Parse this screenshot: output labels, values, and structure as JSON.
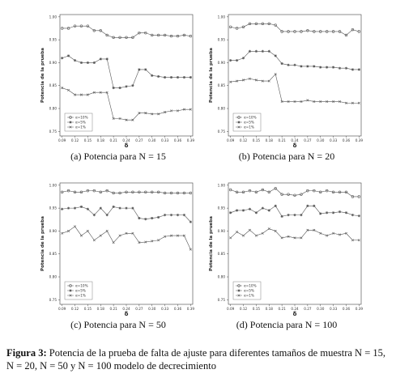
{
  "charts": [
    {
      "chart_data": {
        "type": "line",
        "caption": "(a) Potencia para N = 15",
        "xlabel": "δ",
        "ylabel": "Potencia de la prueba",
        "legend": "lower left",
        "x": [
          0.09,
          0.105,
          0.12,
          0.135,
          0.15,
          0.165,
          0.18,
          0.195,
          0.21,
          0.225,
          0.24,
          0.255,
          0.27,
          0.285,
          0.3,
          0.315,
          0.33,
          0.345,
          0.36,
          0.375,
          0.39
        ],
        "xlim": [
          0.085,
          0.395
        ],
        "xticks": [
          0.09,
          0.12,
          0.15,
          0.18,
          0.21,
          0.24,
          0.27,
          {
            "value": 0.3,
            "label": "0.30"
          },
          0.33,
          0.36,
          0.39
        ],
        "ylim": [
          0.74,
          1.005
        ],
        "yticks": [
          0.75,
          {
            "value": 0.8,
            "label": "0.80"
          },
          0.85,
          {
            "value": 0.9,
            "label": "0.90"
          },
          0.95,
          {
            "value": 1,
            "label": "1.00"
          }
        ],
        "series": [
          {
            "name": "α=10%",
            "color": "#555555",
            "marker": "circle",
            "values": [
              0.975,
              0.975,
              0.98,
              0.98,
              0.98,
              0.97,
              0.97,
              0.96,
              0.955,
              0.955,
              0.955,
              0.955,
              0.965,
              0.965,
              0.96,
              0.96,
              0.96,
              0.958,
              0.958,
              0.96,
              0.958
            ]
          },
          {
            "name": "α=5%",
            "color": "#555555",
            "marker": "star",
            "values": [
              0.91,
              0.915,
              0.905,
              0.9,
              0.9,
              0.9,
              0.908,
              0.908,
              0.845,
              0.845,
              0.848,
              0.85,
              0.885,
              0.885,
              0.872,
              0.87,
              0.868,
              0.868,
              0.868,
              0.868,
              0.868
            ]
          },
          {
            "name": "α=1%",
            "color": "#555555",
            "marker": "cross",
            "values": [
              0.845,
              0.84,
              0.83,
              0.83,
              0.83,
              0.835,
              0.835,
              0.835,
              0.778,
              0.778,
              0.775,
              0.775,
              0.79,
              0.79,
              0.788,
              0.788,
              0.792,
              0.795,
              0.795,
              0.798,
              0.798
            ]
          }
        ]
      }
    },
    {
      "chart_data": {
        "type": "line",
        "caption": "(b) Potencia para N = 20",
        "xlabel": "δ",
        "ylabel": "Potencia de la prueba",
        "legend": "lower left",
        "x": [
          0.09,
          0.105,
          0.12,
          0.135,
          0.15,
          0.165,
          0.18,
          0.195,
          0.21,
          0.225,
          0.24,
          0.255,
          0.27,
          0.285,
          0.3,
          0.315,
          0.33,
          0.345,
          0.36,
          0.375,
          0.39
        ],
        "xlim": [
          0.085,
          0.395
        ],
        "xticks": [
          0.09,
          0.12,
          0.15,
          0.18,
          0.21,
          0.24,
          0.27,
          {
            "value": 0.3,
            "label": "0.30"
          },
          0.33,
          0.36,
          0.39
        ],
        "ylim": [
          0.74,
          1.005
        ],
        "yticks": [
          0.75,
          {
            "value": 0.8,
            "label": "0.80"
          },
          0.85,
          {
            "value": 0.9,
            "label": "0.90"
          },
          0.95,
          {
            "value": 1,
            "label": "1.00"
          }
        ],
        "series": [
          {
            "name": "α=10%",
            "color": "#555555",
            "marker": "circle",
            "values": [
              0.978,
              0.975,
              0.978,
              0.985,
              0.985,
              0.985,
              0.985,
              0.982,
              0.968,
              0.968,
              0.968,
              0.968,
              0.97,
              0.968,
              0.968,
              0.968,
              0.968,
              0.968,
              0.96,
              0.972,
              0.968
            ]
          },
          {
            "name": "α=5%",
            "color": "#555555",
            "marker": "star",
            "values": [
              0.905,
              0.905,
              0.91,
              0.925,
              0.925,
              0.925,
              0.925,
              0.915,
              0.898,
              0.895,
              0.895,
              0.892,
              0.892,
              0.892,
              0.89,
              0.89,
              0.89,
              0.888,
              0.888,
              0.885,
              0.885
            ]
          },
          {
            "name": "α=1%",
            "color": "#555555",
            "marker": "cross",
            "values": [
              0.858,
              0.86,
              0.862,
              0.865,
              0.862,
              0.86,
              0.86,
              0.875,
              0.815,
              0.815,
              0.815,
              0.815,
              0.818,
              0.815,
              0.815,
              0.815,
              0.815,
              0.815,
              0.812,
              0.812,
              0.812
            ]
          }
        ]
      }
    },
    {
      "chart_data": {
        "type": "line",
        "caption": "(c) Potencia para N = 50",
        "xlabel": "δ",
        "ylabel": "Potencia de la prueba",
        "legend": "lower left",
        "x": [
          0.09,
          0.105,
          0.12,
          0.135,
          0.15,
          0.165,
          0.18,
          0.195,
          0.21,
          0.225,
          0.24,
          0.255,
          0.27,
          0.285,
          0.3,
          0.315,
          0.33,
          0.345,
          0.36,
          0.375,
          0.39
        ],
        "xlim": [
          0.085,
          0.395
        ],
        "xticks": [
          0.09,
          0.12,
          0.15,
          0.18,
          0.21,
          0.24,
          0.27,
          {
            "value": 0.3,
            "label": "0.30"
          },
          0.33,
          0.36,
          0.39
        ],
        "ylim": [
          0.74,
          1.005
        ],
        "yticks": [
          0.75,
          {
            "value": 0.8,
            "label": "0.80"
          },
          0.85,
          {
            "value": 0.9,
            "label": "0.90"
          },
          0.95,
          {
            "value": 1,
            "label": "1.00"
          }
        ],
        "series": [
          {
            "name": "α=10%",
            "color": "#555555",
            "marker": "circle",
            "values": [
              0.985,
              0.988,
              0.985,
              0.985,
              0.988,
              0.988,
              0.985,
              0.988,
              0.983,
              0.983,
              0.985,
              0.985,
              0.985,
              0.985,
              0.985,
              0.985,
              0.983,
              0.983,
              0.983,
              0.983,
              0.983
            ]
          },
          {
            "name": "α=5%",
            "color": "#555555",
            "marker": "star",
            "values": [
              0.948,
              0.95,
              0.95,
              0.953,
              0.948,
              0.935,
              0.95,
              0.935,
              0.953,
              0.95,
              0.95,
              0.95,
              0.928,
              0.926,
              0.928,
              0.93,
              0.935,
              0.935,
              0.935,
              0.935,
              0.92
            ]
          },
          {
            "name": "α=1%",
            "color": "#555555",
            "marker": "cross",
            "values": [
              0.895,
              0.9,
              0.91,
              0.89,
              0.9,
              0.88,
              0.89,
              0.9,
              0.875,
              0.89,
              0.895,
              0.895,
              0.875,
              0.876,
              0.878,
              0.88,
              0.888,
              0.89,
              0.89,
              0.89,
              0.86
            ]
          }
        ]
      }
    },
    {
      "chart_data": {
        "type": "line",
        "caption": "(d) Potencia para N = 100",
        "xlabel": "δ",
        "ylabel": "Potencia de la prueba",
        "legend": "lower left",
        "x": [
          0.09,
          0.105,
          0.12,
          0.135,
          0.15,
          0.165,
          0.18,
          0.195,
          0.21,
          0.225,
          0.24,
          0.255,
          0.27,
          0.285,
          0.3,
          0.315,
          0.33,
          0.345,
          0.36,
          0.375,
          0.39
        ],
        "xlim": [
          0.085,
          0.395
        ],
        "xticks": [
          0.09,
          0.12,
          0.15,
          0.18,
          0.21,
          0.24,
          0.27,
          {
            "value": 0.3,
            "label": "0.30"
          },
          0.33,
          0.36,
          0.39
        ],
        "ylim": [
          0.74,
          1.005
        ],
        "yticks": [
          0.75,
          {
            "value": 0.8,
            "label": "0.80"
          },
          0.85,
          {
            "value": 0.9,
            "label": "0.90"
          },
          0.95,
          {
            "value": 1,
            "label": "1.00"
          }
        ],
        "series": [
          {
            "name": "α=10%",
            "color": "#555555",
            "marker": "circle",
            "values": [
              0.99,
              0.985,
              0.985,
              0.988,
              0.985,
              0.99,
              0.985,
              0.993,
              0.98,
              0.98,
              0.978,
              0.98,
              0.988,
              0.988,
              0.985,
              0.988,
              0.985,
              0.985,
              0.985,
              0.975,
              0.975
            ]
          },
          {
            "name": "α=5%",
            "color": "#555555",
            "marker": "star",
            "values": [
              0.94,
              0.945,
              0.945,
              0.948,
              0.94,
              0.95,
              0.945,
              0.955,
              0.932,
              0.935,
              0.935,
              0.935,
              0.955,
              0.955,
              0.938,
              0.94,
              0.94,
              0.942,
              0.94,
              0.935,
              0.933
            ]
          },
          {
            "name": "α=1%",
            "color": "#555555",
            "marker": "cross",
            "values": [
              0.885,
              0.898,
              0.89,
              0.902,
              0.89,
              0.895,
              0.905,
              0.9,
              0.885,
              0.888,
              0.885,
              0.885,
              0.902,
              0.902,
              0.895,
              0.89,
              0.895,
              0.892,
              0.895,
              0.88,
              0.88
            ]
          }
        ]
      }
    }
  ],
  "figure_caption": {
    "label": "Figura 3:",
    "text": "Potencia de la prueba de falta de ajuste para diferentes tamaños de muestra N = 15, N = 20, N = 50 y N = 100 modelo de decrecimiento"
  }
}
